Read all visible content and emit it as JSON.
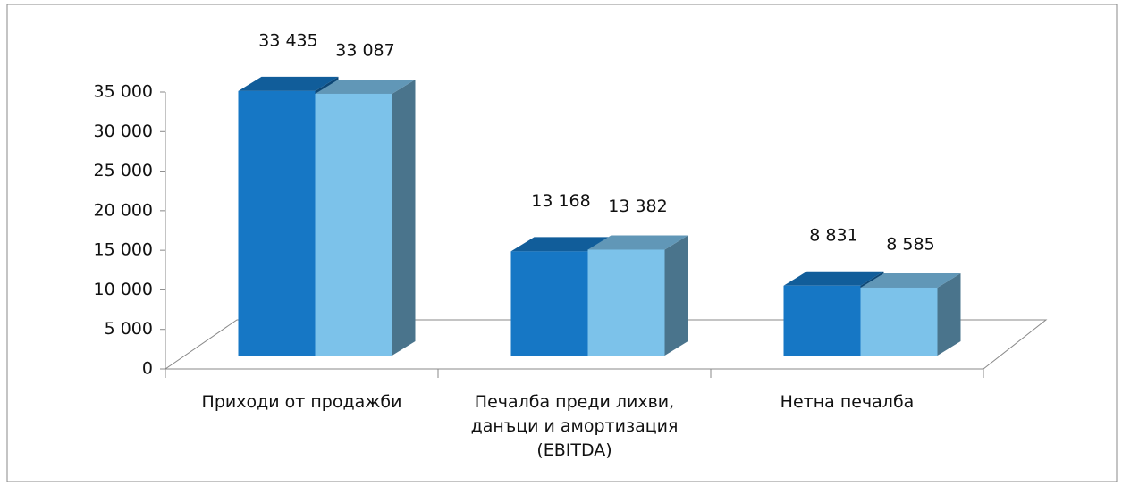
{
  "chart_data": {
    "type": "bar3d",
    "categories": [
      "Приходи от продажби",
      "Печалба преди лихви, данъци и амортизация (EBITDA)",
      "Нетна печалба"
    ],
    "series": [
      {
        "color": "#1677c5",
        "values": [
          33435,
          13168,
          8831
        ],
        "value_labels": [
          "33 435",
          "13 168",
          "8 831"
        ]
      },
      {
        "color": "#7cc2ea",
        "values": [
          33087,
          13382,
          8585
        ],
        "value_labels": [
          "33 087",
          "13 382",
          "8 585"
        ]
      }
    ],
    "ylim": [
      0,
      35000
    ],
    "yticks": [
      0,
      {
        "value": 5000,
        "label": "5 000"
      },
      {
        "value": 10000,
        "label": "10 000"
      },
      {
        "value": 15000,
        "label": "15 000"
      },
      {
        "value": 20000,
        "label": "20 000"
      },
      {
        "value": 25000,
        "label": "25 000"
      },
      {
        "value": 30000,
        "label": "30 000"
      },
      {
        "value": 35000,
        "label": "35 000"
      }
    ]
  }
}
